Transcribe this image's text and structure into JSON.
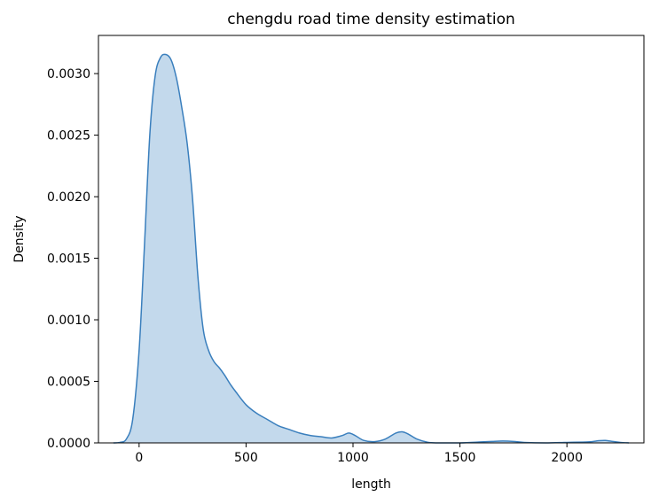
{
  "chart_data": {
    "type": "area",
    "title": "chengdu road time density estimation",
    "xlabel": "length",
    "ylabel": "Density",
    "xlim": [
      -190,
      2360
    ],
    "ylim": [
      0,
      0.00331
    ],
    "xticks": [
      0,
      500,
      1000,
      1500,
      2000
    ],
    "xtick_labels": [
      "0",
      "500",
      "1000",
      "1500",
      "2000"
    ],
    "yticks": [
      0,
      0.0005,
      0.001,
      0.0015,
      0.002,
      0.0025,
      0.003
    ],
    "ytick_labels": [
      "0.0000",
      "0.0005",
      "0.0010",
      "0.0015",
      "0.0020",
      "0.0025",
      "0.0030"
    ],
    "grid": false,
    "legend": "none",
    "colors": {
      "line": "#3a7fbd",
      "fill": "#c3d9ec"
    },
    "series": [
      {
        "x": [
          -120,
          -90,
          -60,
          -30,
          0,
          25,
          50,
          75,
          100,
          125,
          150,
          175,
          200,
          225,
          250,
          275,
          300,
          325,
          350,
          375,
          400,
          425,
          450,
          500,
          550,
          600,
          650,
          700,
          750,
          800,
          850,
          900,
          950,
          980,
          1010,
          1050,
          1100,
          1150,
          1200,
          1230,
          1260,
          1300,
          1350,
          1400,
          1500,
          1600,
          1650,
          1700,
          1750,
          1800,
          1900,
          2000,
          2100,
          2150,
          2180,
          2200,
          2250,
          2290
        ],
        "y": [
          0,
          4e-06,
          3e-05,
          0.00019,
          0.00075,
          0.0016,
          0.0025,
          0.00298,
          0.00313,
          0.003155,
          0.00311,
          0.00296,
          0.00272,
          0.00243,
          0.00198,
          0.00135,
          0.00092,
          0.00075,
          0.00066,
          0.00061,
          0.00055,
          0.00048,
          0.00042,
          0.00031,
          0.00024,
          0.00019,
          0.00014,
          0.00011,
          8e-05,
          6e-05,
          5e-05,
          4e-05,
          6e-05,
          8e-05,
          6e-05,
          2e-05,
          1e-05,
          3e-05,
          8e-05,
          9e-05,
          7e-05,
          3e-05,
          5e-06,
          0,
          0,
          8e-06,
          1.2e-05,
          1.5e-05,
          1.2e-05,
          4e-06,
          0,
          4e-06,
          8e-06,
          1.8e-05,
          2e-05,
          1.5e-05,
          4e-06,
          0
        ]
      }
    ]
  }
}
